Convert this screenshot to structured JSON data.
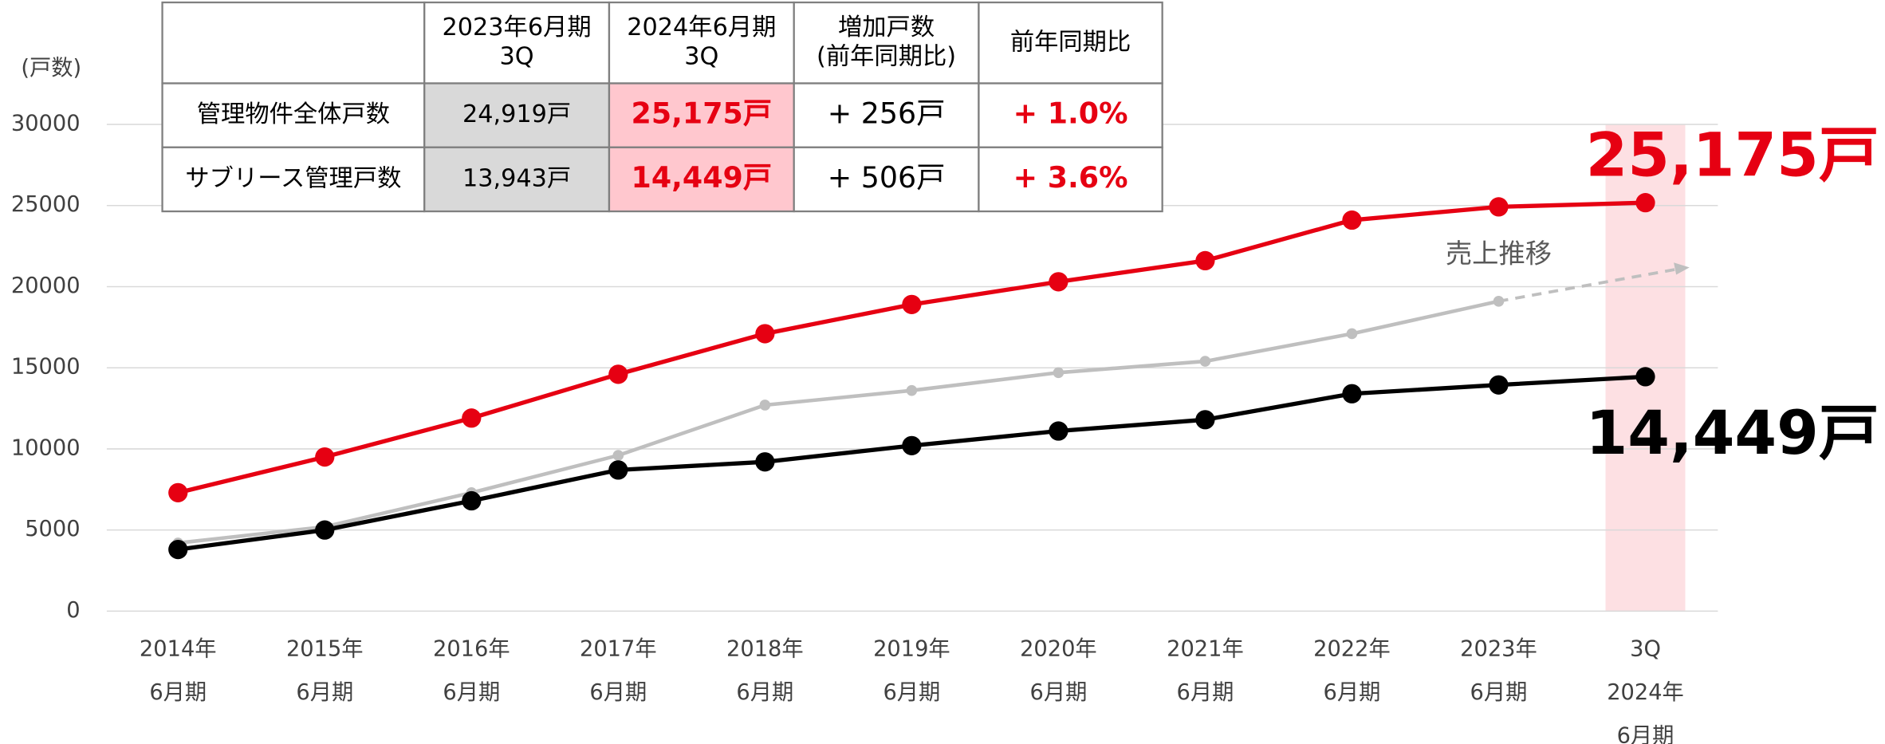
{
  "chart_data": {
    "type": "line",
    "y_axis_label": "(戸数)",
    "categories": [
      [
        "2014年",
        "6月期"
      ],
      [
        "2015年",
        "6月期"
      ],
      [
        "2016年",
        "6月期"
      ],
      [
        "2017年",
        "6月期"
      ],
      [
        "2018年",
        "6月期"
      ],
      [
        "2019年",
        "6月期"
      ],
      [
        "2020年",
        "6月期"
      ],
      [
        "2021年",
        "6月期"
      ],
      [
        "2022年",
        "6月期"
      ],
      [
        "2023年",
        "6月期"
      ],
      [
        "3Q",
        "2024年",
        "6月期"
      ]
    ],
    "series": [
      {
        "color": "#e60012",
        "values": [
          7300,
          9500,
          11900,
          14600,
          17100,
          18900,
          20300,
          21600,
          24100,
          24919,
          25175
        ],
        "value_labels": [
          null,
          null,
          null,
          null,
          null,
          null,
          null,
          null,
          null,
          null,
          "25,175戸"
        ]
      },
      {
        "color": "#000000",
        "values": [
          3800,
          5000,
          6800,
          8700,
          9200,
          10200,
          11100,
          11800,
          13400,
          13943,
          14449
        ],
        "value_labels": [
          null,
          null,
          null,
          null,
          null,
          null,
          null,
          null,
          null,
          null,
          "14,449戸"
        ]
      },
      {
        "name": "売上推移",
        "color": "#bfbfbf",
        "values": [
          4200,
          5200,
          7300,
          9600,
          12700,
          13600,
          14700,
          15400,
          17100,
          19100,
          null
        ]
      }
    ],
    "ylim": [
      0,
      30000
    ],
    "yticks": [
      0,
      5000,
      10000,
      15000,
      20000,
      25000,
      30000
    ],
    "grid": true,
    "highlight_category": 10
  },
  "table": {
    "header": [
      [
        "2023年6月期",
        "3Q"
      ],
      [
        "2024年6月期",
        "3Q"
      ],
      [
        "増加戸数",
        "(前年同期比)"
      ],
      [
        "前年同期比"
      ]
    ],
    "rows": [
      [
        "管理物件全体戸数",
        "24,919戸",
        "25,175戸",
        "+ 256戸",
        "+ 1.0%"
      ],
      [
        "サブリース管理戸数",
        "13,943戸",
        "14,449戸",
        "+ 506戸",
        "+ 3.6%"
      ]
    ]
  }
}
